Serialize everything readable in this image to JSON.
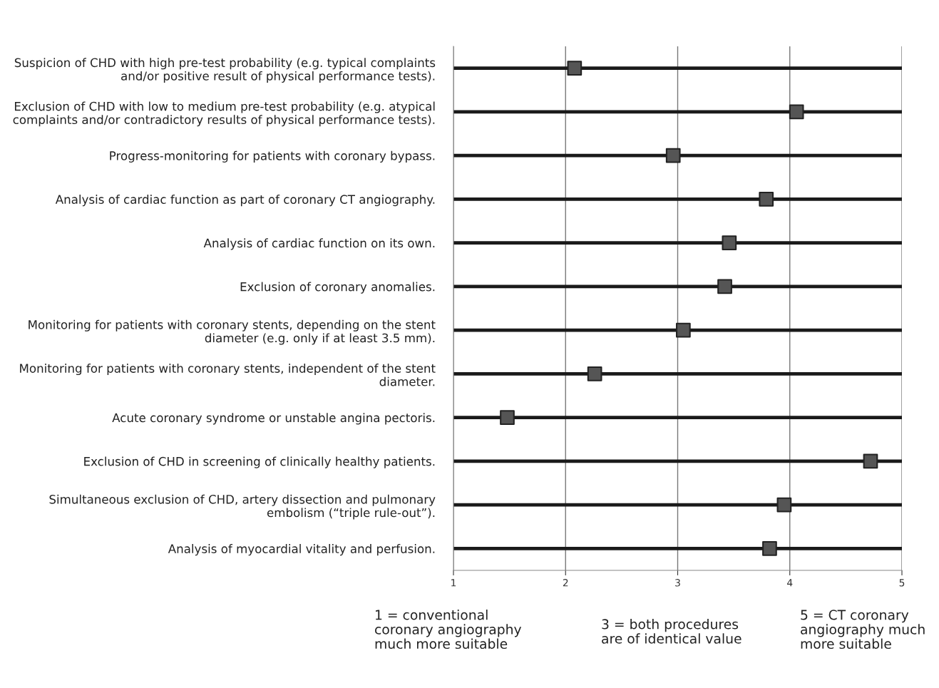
{
  "chart_data": {
    "type": "scatter",
    "categories": [
      "Suspicion of CHD with high pre-test probability (e.g. typical complaints\nand/or positive result of physical performance tests).",
      "Exclusion of CHD with low to medium pre-test probability (e.g. atypical\ncomplaints and/or contradictory results of physical performance tests).",
      "Progress-monitoring for patients with coronary bypass.",
      "Analysis of cardiac function as part of coronary CT angiography.",
      "Analysis of cardiac function on its own.",
      "Exclusion of coronary anomalies.",
      "Monitoring for patients with coronary stents, depending on the stent\ndiameter (e.g. only if at least 3.5 mm).",
      "Monitoring for patients with coronary stents, independent of the stent\ndiameter.",
      "Acute coronary syndrome or unstable angina pectoris.",
      "Exclusion of CHD in screening of clinically healthy patients.",
      "Simultaneous exclusion of CHD, artery dissection and pulmonary\nembolism (“triple rule-out”).",
      "Analysis of myocardial vitality and perfusion."
    ],
    "orientation": "horizontal",
    "series": [
      {
        "color": "#555555",
        "values": [
          2.08,
          4.06,
          2.96,
          3.79,
          3.46,
          3.42,
          3.05,
          2.26,
          1.48,
          4.72,
          3.95,
          3.82
        ]
      }
    ],
    "xlim": [
      1,
      5
    ],
    "xticks": [
      1,
      2,
      3,
      4,
      5
    ],
    "grid": true,
    "marker": "square",
    "annotations": [
      "1 = conventional\ncoronary angiography\nmuch more suitable",
      "3 = both procedures\nare of identical value",
      "5 = CT coronary\nangiography much\nmore suitable"
    ]
  }
}
